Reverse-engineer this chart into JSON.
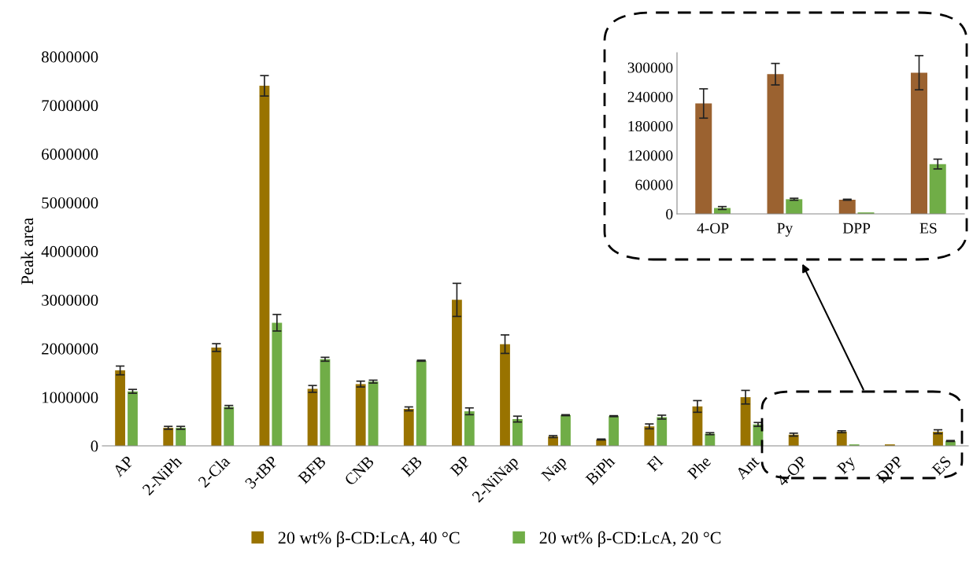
{
  "chart_data": [
    {
      "type": "bar",
      "ylabel": "Peak area",
      "categories": [
        "AP",
        "2-NiPh",
        "2-Cla",
        "3-tBP",
        "BFB",
        "CNB",
        "EB",
        "BP",
        "2-NiNap",
        "Nap",
        "BiPh",
        "Fl",
        "Phe",
        "Ant",
        "4-OP",
        "Py",
        "DPP",
        "ES"
      ],
      "series": [
        {
          "name": "20 wt% β-CD:LcA, 40 °C",
          "color": "#997300",
          "values": [
            1550000,
            370000,
            2020000,
            7400000,
            1170000,
            1270000,
            760000,
            3000000,
            2090000,
            190000,
            130000,
            400000,
            810000,
            1000000,
            230000,
            290000,
            30000,
            290000
          ],
          "errors": [
            90000,
            30000,
            80000,
            210000,
            70000,
            60000,
            40000,
            340000,
            190000,
            20000,
            10000,
            50000,
            120000,
            140000,
            30000,
            20000,
            null,
            40000
          ]
        },
        {
          "name": "20 wt% β-CD:LcA, 20 °C",
          "color": "#70ad47",
          "values": [
            1120000,
            370000,
            800000,
            2530000,
            1780000,
            1320000,
            1750000,
            710000,
            550000,
            630000,
            610000,
            590000,
            250000,
            440000,
            null,
            30000,
            0,
            100000
          ],
          "errors": [
            40000,
            30000,
            30000,
            170000,
            40000,
            30000,
            10000,
            70000,
            60000,
            10000,
            10000,
            40000,
            20000,
            40000,
            null,
            null,
            null,
            10000
          ]
        }
      ],
      "ylim": [
        0,
        8000000
      ],
      "yticks": [
        0,
        1000000,
        2000000,
        3000000,
        4000000,
        5000000,
        6000000,
        7000000,
        8000000
      ],
      "grid": false,
      "legend": "bottom"
    },
    {
      "type": "bar",
      "categories": [
        "4-OP",
        "Py",
        "DPP",
        "ES"
      ],
      "series": [
        {
          "color": "#9b6230",
          "values": [
            226000,
            286000,
            29000,
            289000
          ],
          "errors": [
            30000,
            22000,
            1000,
            35000
          ]
        },
        {
          "color": "#70ad47",
          "values": [
            12000,
            30000,
            3000,
            102000
          ],
          "errors": [
            3000,
            2000,
            null,
            10000
          ]
        }
      ],
      "ylim": [
        0,
        330000
      ],
      "yticks": [
        0,
        60000,
        120000,
        180000,
        240000,
        300000
      ],
      "grid": false
    }
  ]
}
